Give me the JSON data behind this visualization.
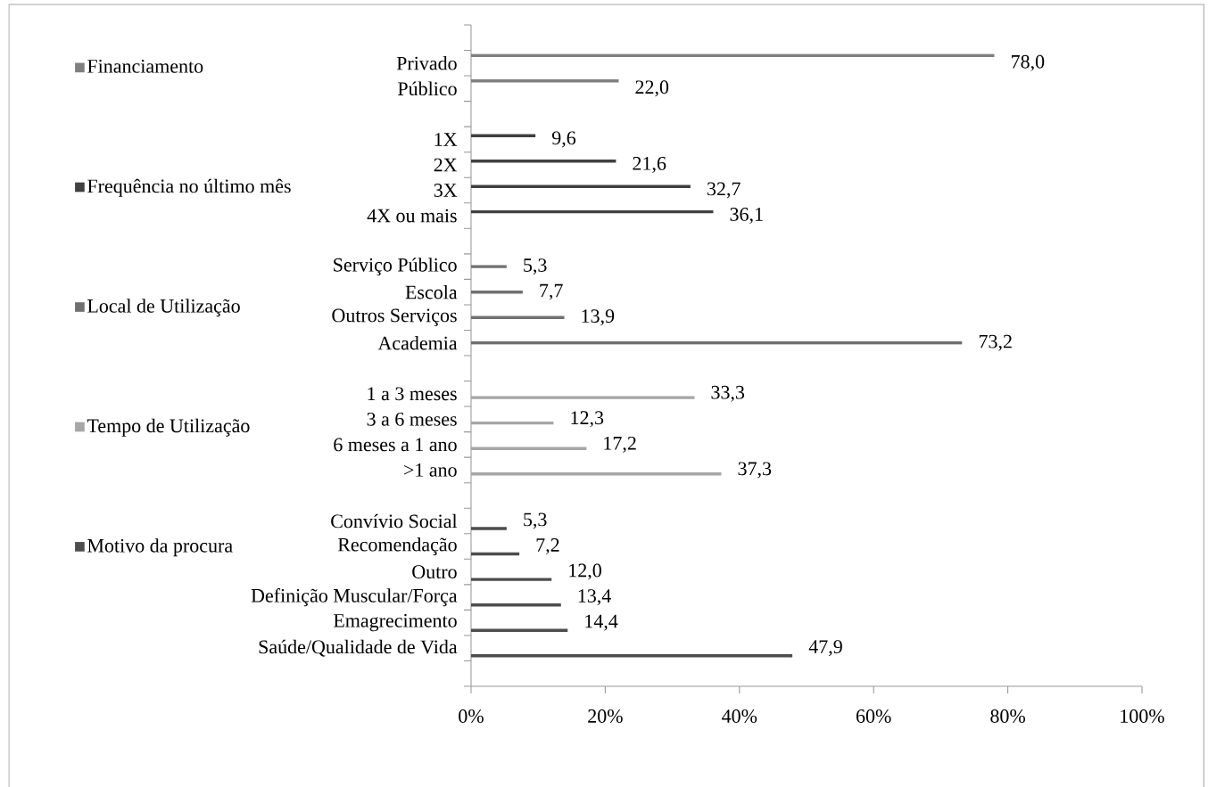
{
  "chart_data": {
    "type": "bar",
    "orientation": "horizontal",
    "legend": "left",
    "categories": [
      null,
      "Privado",
      "Público",
      null,
      "1X",
      "2X",
      "3X",
      "4X ou mais",
      null,
      "Serviço Público",
      "Escola",
      "Outros Serviços",
      "Academia",
      null,
      "1 a 3 meses",
      "3 a 6 meses",
      "6 meses a 1 ano",
      ">1 ano",
      null,
      "Convívio Social",
      "Recomendação",
      "Outro",
      "Definição Muscular/Força",
      "Emagrecimento",
      "Saúde/Qualidade de Vida",
      null
    ],
    "xlim": [
      0,
      100
    ],
    "xticks": [
      {
        "value": 0,
        "label": "0%"
      },
      {
        "value": 20,
        "label": "20%"
      },
      {
        "value": 40,
        "label": "40%"
      },
      {
        "value": 60,
        "label": "60%"
      },
      {
        "value": 80,
        "label": "80%"
      },
      {
        "value": 100,
        "label": "100%"
      }
    ],
    "series": [
      {
        "name": "Financiamento",
        "color": "#808080",
        "values": [
          null,
          78.0,
          22.0,
          null,
          null,
          null,
          null,
          null,
          null,
          null,
          null,
          null,
          null,
          null,
          null,
          null,
          null,
          null,
          null,
          null,
          null,
          null,
          null,
          null,
          null,
          null
        ],
        "value_labels": [
          null,
          "78,0",
          "22,0",
          null,
          null,
          null,
          null,
          null,
          null,
          null,
          null,
          null,
          null,
          null,
          null,
          null,
          null,
          null,
          null,
          null,
          null,
          null,
          null,
          null,
          null,
          null
        ]
      },
      {
        "name": "Frequência no último mês",
        "color": "#404040",
        "values": [
          null,
          null,
          null,
          null,
          9.6,
          21.6,
          32.7,
          36.1,
          null,
          null,
          null,
          null,
          null,
          null,
          null,
          null,
          null,
          null,
          null,
          null,
          null,
          null,
          null,
          null,
          null,
          null
        ],
        "value_labels": [
          null,
          null,
          null,
          null,
          "9,6",
          "21,6",
          "32,7",
          "36,1",
          null,
          null,
          null,
          null,
          null,
          null,
          null,
          null,
          null,
          null,
          null,
          null,
          null,
          null,
          null,
          null,
          null,
          null
        ]
      },
      {
        "name": "Local de Utilização",
        "color": "#707070",
        "values": [
          null,
          null,
          null,
          null,
          null,
          null,
          null,
          null,
          null,
          5.3,
          7.7,
          13.9,
          73.2,
          null,
          null,
          null,
          null,
          null,
          null,
          null,
          null,
          null,
          null,
          null,
          null,
          null
        ],
        "value_labels": [
          null,
          null,
          null,
          null,
          null,
          null,
          null,
          null,
          null,
          "5,3",
          "7,7",
          "13,9",
          "73,2",
          null,
          null,
          null,
          null,
          null,
          null,
          null,
          null,
          null,
          null,
          null,
          null,
          null
        ]
      },
      {
        "name": "Tempo de Utilização",
        "color": "#a6a6a6",
        "values": [
          null,
          null,
          null,
          null,
          null,
          null,
          null,
          null,
          null,
          null,
          null,
          null,
          null,
          null,
          33.3,
          12.3,
          17.2,
          37.3,
          null,
          null,
          null,
          null,
          null,
          null,
          null,
          null
        ],
        "value_labels": [
          null,
          null,
          null,
          null,
          null,
          null,
          null,
          null,
          null,
          null,
          null,
          null,
          null,
          null,
          "33,3",
          "12,3",
          "17,2",
          "37,3",
          null,
          null,
          null,
          null,
          null,
          null,
          null,
          null
        ]
      },
      {
        "name": "Motivo da procura",
        "color": "#4d4d4d",
        "values": [
          null,
          null,
          null,
          null,
          null,
          null,
          null,
          null,
          null,
          null,
          null,
          null,
          null,
          null,
          null,
          null,
          null,
          null,
          null,
          5.3,
          7.2,
          12.0,
          13.4,
          14.4,
          47.9,
          null
        ],
        "value_labels": [
          null,
          null,
          null,
          null,
          null,
          null,
          null,
          null,
          null,
          null,
          null,
          null,
          null,
          null,
          null,
          null,
          null,
          null,
          null,
          "5,3",
          "7,2",
          "12,0",
          "13,4",
          "14,4",
          "47,9",
          null
        ]
      }
    ]
  }
}
